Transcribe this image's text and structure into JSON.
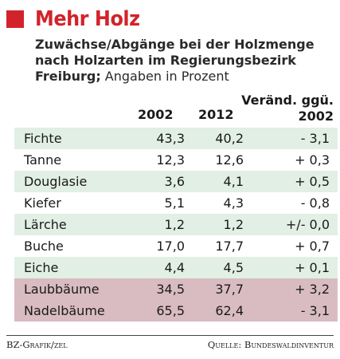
{
  "header": {
    "title": "Mehr Holz",
    "subtitle_line1": "Zuwächse/Abgänge bei der Holzmenge",
    "subtitle_line2": "nach Holzarten  im Regierungsbezirk",
    "subtitle_line3_bold": "Freiburg;",
    "subtitle_line3_normal": " Angaben in Prozent"
  },
  "columns": {
    "y2002": "2002",
    "y2012": "2012",
    "change_line1": "Veränd. ggü.",
    "change_line2": "2002"
  },
  "rows": [
    {
      "name": "Fichte",
      "v2002": "43,3",
      "v2012": "40,2",
      "change": "- 3,1"
    },
    {
      "name": "Tanne",
      "v2002": "12,3",
      "v2012": "12,6",
      "change": "+ 0,3"
    },
    {
      "name": "Douglasie",
      "v2002": "3,6",
      "v2012": "4,1",
      "change": "+ 0,5"
    },
    {
      "name": "Kiefer",
      "v2002": "5,1",
      "v2012": "4,3",
      "change": "- 0,8"
    },
    {
      "name": "Lärche",
      "v2002": "1,2",
      "v2012": "1,2",
      "change": "+/- 0,0"
    },
    {
      "name": "Buche",
      "v2002": "17,0",
      "v2012": "17,7",
      "change": "+ 0,7"
    },
    {
      "name": "Eiche",
      "v2002": "4,4",
      "v2012": "4,5",
      "change": "+ 0,1"
    },
    {
      "name": "Laubbäume",
      "v2002": "34,5",
      "v2012": "37,7",
      "change": "+ 3,2"
    },
    {
      "name": "Nadelbäume",
      "v2002": "65,5",
      "v2012": "62,4",
      "change": "- 3,1"
    }
  ],
  "footer": {
    "left": "BZ-Grafik/zel",
    "right": "Quelle: Bundeswaldinventur"
  },
  "colors": {
    "accent_red": "#d2232a",
    "row_green": "#e2efe4",
    "row_rose": "#d9bcc2"
  }
}
